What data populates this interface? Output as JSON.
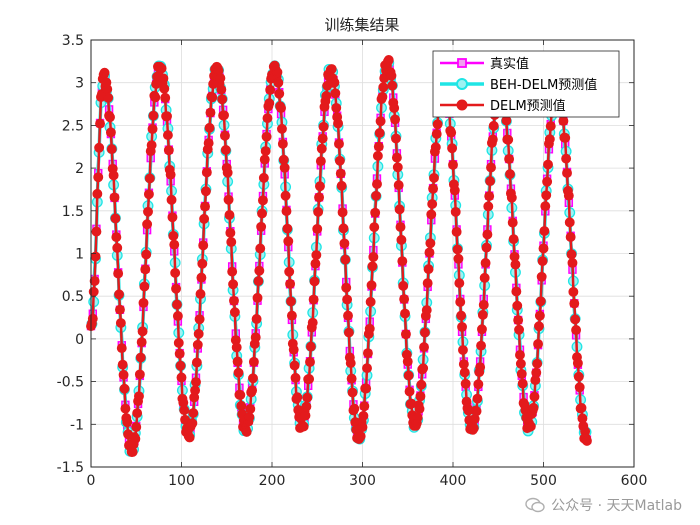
{
  "chart_data": {
    "type": "line",
    "title": "训练集结果",
    "xlim": [
      0,
      600
    ],
    "ylim": [
      -1.5,
      3.5
    ],
    "xticks": [
      0,
      100,
      200,
      300,
      400,
      500,
      600
    ],
    "yticks": [
      -1.5,
      -1,
      -0.5,
      0,
      0.5,
      1,
      1.5,
      2,
      2.5,
      3,
      3.5
    ],
    "xtick_labels": [
      "0",
      "100",
      "200",
      "300",
      "400",
      "500",
      "600"
    ],
    "ytick_labels": [
      "-1.5",
      "-1",
      "-0.5",
      "0",
      "0.5",
      "1",
      "1.5",
      "2",
      "2.5",
      "3",
      "3.5"
    ],
    "grid": true,
    "legend_position": "top-right",
    "series_style": [
      {
        "color": "#ff00ff",
        "marker": "square",
        "line_width": 2.5
      },
      {
        "color": "#1fe5e5",
        "marker": "circle",
        "line_width": 3.5
      },
      {
        "color": "#e31a1c",
        "marker": "circle",
        "line_width": 2.5
      }
    ],
    "peaks": [
      {
        "x": 14,
        "y": 3.08
      },
      {
        "x": 76,
        "y": 3.17
      },
      {
        "x": 139,
        "y": 3.16
      },
      {
        "x": 203,
        "y": 3.17
      },
      {
        "x": 265,
        "y": 3.13
      },
      {
        "x": 328,
        "y": 3.23
      },
      {
        "x": 390,
        "y": 3.0
      },
      {
        "x": 452,
        "y": 3.0
      },
      {
        "x": 515,
        "y": 3.0
      }
    ],
    "troughs": [
      {
        "x": 0,
        "y": 0.15
      },
      {
        "x": 45,
        "y": -1.3
      },
      {
        "x": 108,
        "y": -1.12
      },
      {
        "x": 171,
        "y": -1.05
      },
      {
        "x": 233,
        "y": -1.02
      },
      {
        "x": 296,
        "y": -1.15
      },
      {
        "x": 358,
        "y": -1.0
      },
      {
        "x": 421,
        "y": -1.05
      },
      {
        "x": 484,
        "y": -1.02
      },
      {
        "x": 548,
        "y": -1.18
      }
    ],
    "series": [
      {
        "name": "真实值"
      },
      {
        "name": "BEH-DELM预测值"
      },
      {
        "name": "DELM预测值"
      }
    ]
  },
  "watermark": {
    "text": "公众号 · 天天Matlab"
  }
}
